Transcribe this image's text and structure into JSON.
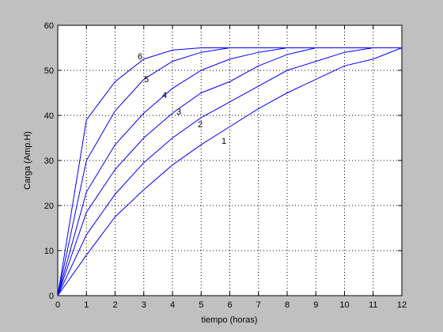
{
  "chart_data": {
    "type": "line",
    "xlabel": "tiempo (horas)",
    "ylabel": "Carga (Amp.H)",
    "x": [
      0,
      1,
      2,
      3,
      4,
      5,
      6,
      7,
      8,
      9,
      10,
      11,
      12
    ],
    "series": [
      {
        "name": "1",
        "color": "#0000ff",
        "values": [
          0,
          9,
          17.5,
          23.5,
          29,
          33.5,
          37.5,
          41.5,
          45,
          48,
          51,
          52.5,
          55
        ]
      },
      {
        "name": "2",
        "color": "#0000ff",
        "values": [
          0,
          13.5,
          22.5,
          29.5,
          35,
          39.5,
          43,
          46.5,
          50,
          52,
          54,
          55,
          55
        ]
      },
      {
        "name": "3",
        "color": "#0000ff",
        "values": [
          0,
          18.5,
          28,
          35,
          40.5,
          45,
          47.5,
          51,
          53.5,
          55,
          55,
          55,
          55
        ]
      },
      {
        "name": "4",
        "color": "#0000ff",
        "values": [
          0,
          23,
          33.5,
          40.5,
          46,
          50,
          52.5,
          54,
          55,
          55,
          55,
          55,
          55
        ]
      },
      {
        "name": "5",
        "color": "#0000ff",
        "values": [
          0,
          30,
          41,
          48,
          52,
          54,
          55,
          55,
          55,
          55,
          55,
          55,
          55
        ]
      },
      {
        "name": "6",
        "color": "#0000ff",
        "values": [
          0,
          39,
          47.5,
          52.5,
          54.5,
          55,
          55,
          55,
          55,
          55,
          55,
          55,
          55
        ]
      }
    ],
    "xlim": [
      0,
      12
    ],
    "xticks": [
      0,
      1,
      2,
      3,
      4,
      5,
      6,
      7,
      8,
      9,
      10,
      11,
      12
    ],
    "ylim": [
      0,
      60
    ],
    "yticks": [
      0,
      10,
      20,
      30,
      40,
      50,
      60
    ],
    "grid": true
  }
}
